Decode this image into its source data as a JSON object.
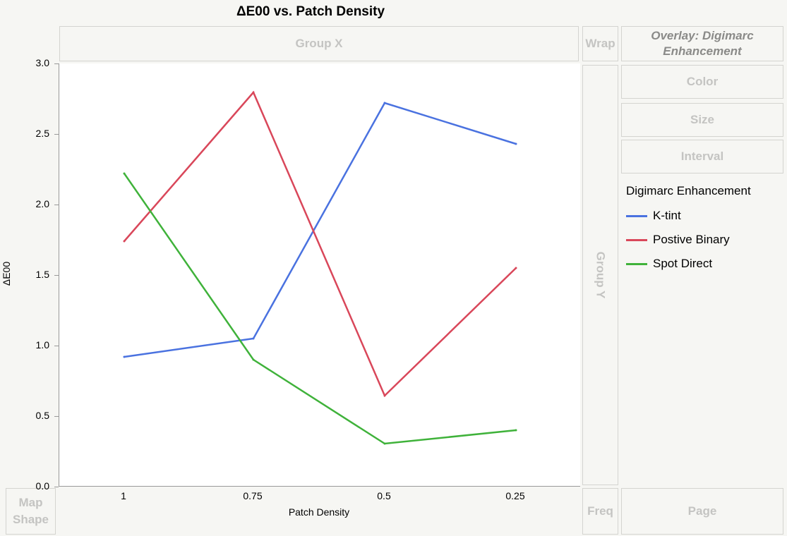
{
  "zones": {
    "group_x": "Group X",
    "wrap": "Wrap",
    "overlay": "Overlay: Digimarc Enhancement",
    "color": "Color",
    "size": "Size",
    "interval": "Interval",
    "group_y": "Group Y",
    "map_shape": "Map Shape",
    "freq": "Freq",
    "page": "Page"
  },
  "legend": {
    "title": "Digimarc Enhancement"
  },
  "chart_data": {
    "type": "line",
    "title": "ΔE00 vs. Patch Density",
    "xlabel": "Patch Density",
    "ylabel": "ΔE00",
    "categories": [
      "1",
      "0.75",
      "0.5",
      "0.25"
    ],
    "ylim": [
      0,
      3.0
    ],
    "yticks": [
      "0.0",
      "0.5",
      "1.0",
      "1.5",
      "2.0",
      "2.5",
      "3.0"
    ],
    "grid": false,
    "legend_position": "right",
    "series": [
      {
        "name": "K-tint",
        "color": "#4a72e0",
        "values": [
          0.92,
          1.05,
          2.72,
          2.43
        ]
      },
      {
        "name": "Postive Binary",
        "color": "#d9475a",
        "values": [
          1.74,
          2.795,
          0.645,
          1.55
        ]
      },
      {
        "name": "Spot Direct",
        "color": "#3fb23a",
        "values": [
          2.22,
          0.9,
          0.305,
          0.4
        ]
      }
    ]
  }
}
